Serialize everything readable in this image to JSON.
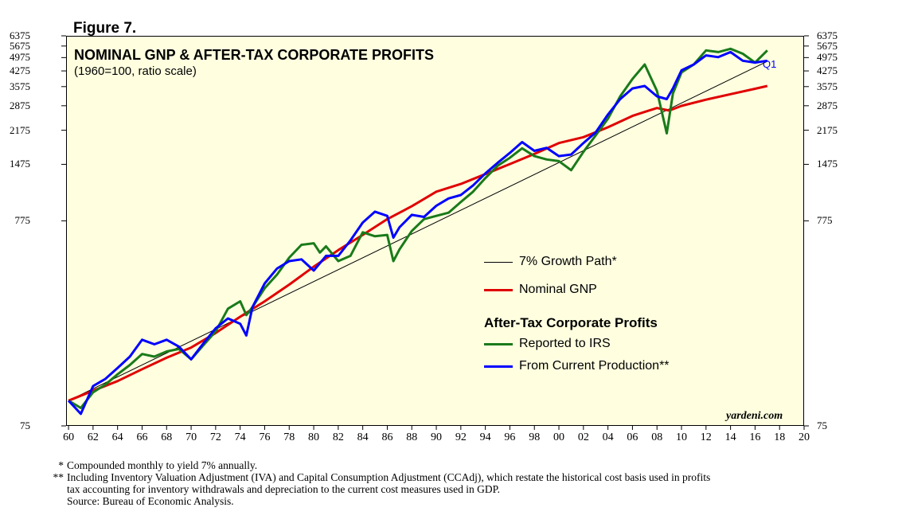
{
  "figure_label": "Figure 7.",
  "chart_data": {
    "type": "line",
    "title": "NOMINAL GNP & AFTER-TAX CORPORATE PROFITS",
    "subtitle": "(1960=100, ratio scale)",
    "scale": "log",
    "ylim": [
      75,
      6375
    ],
    "xlim": [
      1959.8,
      2020
    ],
    "y_ticks": [
      "6375",
      "5675",
      "4975",
      "4275",
      "3575",
      "2875",
      "2175",
      "1475",
      "775",
      "75"
    ],
    "x_ticks": [
      "60",
      "62",
      "64",
      "66",
      "68",
      "70",
      "72",
      "74",
      "76",
      "78",
      "80",
      "82",
      "84",
      "86",
      "88",
      "90",
      "92",
      "94",
      "96",
      "98",
      "00",
      "02",
      "04",
      "06",
      "08",
      "10",
      "12",
      "14",
      "16",
      "18",
      "20"
    ],
    "legend_header": "After-Tax Corporate Profits",
    "credit": "yardeni.com",
    "latest_label": "Q1",
    "series": [
      {
        "name": "7% Growth Path*",
        "color": "#000000",
        "width": 1,
        "points": [
          [
            1960,
            100
          ],
          [
            2017,
            4764
          ]
        ]
      },
      {
        "name": "Nominal GNP",
        "color": "#e00000",
        "width": 3,
        "points": [
          [
            1960,
            100
          ],
          [
            1962,
            112
          ],
          [
            1964,
            125
          ],
          [
            1966,
            143
          ],
          [
            1968,
            163
          ],
          [
            1970,
            183
          ],
          [
            1972,
            216
          ],
          [
            1974,
            260
          ],
          [
            1976,
            310
          ],
          [
            1978,
            375
          ],
          [
            1980,
            460
          ],
          [
            1982,
            555
          ],
          [
            1984,
            660
          ],
          [
            1986,
            790
          ],
          [
            1988,
            915
          ],
          [
            1990,
            1080
          ],
          [
            1992,
            1180
          ],
          [
            1994,
            1320
          ],
          [
            1996,
            1480
          ],
          [
            1998,
            1660
          ],
          [
            2000,
            1880
          ],
          [
            2002,
            2010
          ],
          [
            2004,
            2250
          ],
          [
            2006,
            2560
          ],
          [
            2007,
            2680
          ],
          [
            2008,
            2800
          ],
          [
            2009,
            2720
          ],
          [
            2010,
            2870
          ],
          [
            2012,
            3080
          ],
          [
            2014,
            3280
          ],
          [
            2016,
            3490
          ],
          [
            2017,
            3600
          ]
        ]
      },
      {
        "name": "Reported to IRS",
        "color": "#1a7a1a",
        "width": 3,
        "points": [
          [
            1960,
            100
          ],
          [
            1961,
            92
          ],
          [
            1962,
            110
          ],
          [
            1963,
            120
          ],
          [
            1964,
            135
          ],
          [
            1965,
            150
          ],
          [
            1966,
            170
          ],
          [
            1967,
            165
          ],
          [
            1968,
            175
          ],
          [
            1969,
            180
          ],
          [
            1970,
            160
          ],
          [
            1971,
            188
          ],
          [
            1972,
            220
          ],
          [
            1973,
            285
          ],
          [
            1974,
            310
          ],
          [
            1974.5,
            265
          ],
          [
            1975,
            290
          ],
          [
            1976,
            360
          ],
          [
            1977,
            420
          ],
          [
            1978,
            510
          ],
          [
            1979,
            590
          ],
          [
            1980,
            600
          ],
          [
            1980.5,
            540
          ],
          [
            1981,
            580
          ],
          [
            1982,
            490
          ],
          [
            1983,
            520
          ],
          [
            1984,
            680
          ],
          [
            1985,
            650
          ],
          [
            1986,
            660
          ],
          [
            1986.5,
            490
          ],
          [
            1987,
            560
          ],
          [
            1988,
            690
          ],
          [
            1989,
            790
          ],
          [
            1990,
            820
          ],
          [
            1991,
            850
          ],
          [
            1992,
            960
          ],
          [
            1993,
            1080
          ],
          [
            1994,
            1260
          ],
          [
            1995,
            1450
          ],
          [
            1996,
            1590
          ],
          [
            1997,
            1770
          ],
          [
            1998,
            1620
          ],
          [
            1999,
            1560
          ],
          [
            2000,
            1530
          ],
          [
            2001,
            1380
          ],
          [
            2002,
            1700
          ],
          [
            2003,
            2050
          ],
          [
            2004,
            2480
          ],
          [
            2005,
            3200
          ],
          [
            2006,
            3900
          ],
          [
            2007,
            4600
          ],
          [
            2008,
            3400
          ],
          [
            2008.8,
            2100
          ],
          [
            2009.3,
            3300
          ],
          [
            2010,
            4200
          ],
          [
            2011,
            4600
          ],
          [
            2012,
            5400
          ],
          [
            2013,
            5300
          ],
          [
            2014,
            5500
          ],
          [
            2015,
            5200
          ],
          [
            2016,
            4700
          ],
          [
            2017,
            5400
          ]
        ]
      },
      {
        "name": "From Current Production**",
        "color": "#0000ff",
        "width": 3,
        "points": [
          [
            1960,
            100
          ],
          [
            1961,
            86
          ],
          [
            1962,
            118
          ],
          [
            1963,
            128
          ],
          [
            1964,
            145
          ],
          [
            1965,
            165
          ],
          [
            1966,
            200
          ],
          [
            1967,
            190
          ],
          [
            1968,
            200
          ],
          [
            1969,
            185
          ],
          [
            1970,
            160
          ],
          [
            1971,
            192
          ],
          [
            1972,
            228
          ],
          [
            1973,
            255
          ],
          [
            1974,
            240
          ],
          [
            1974.5,
            210
          ],
          [
            1975,
            290
          ],
          [
            1976,
            380
          ],
          [
            1977,
            450
          ],
          [
            1978,
            490
          ],
          [
            1979,
            500
          ],
          [
            1980,
            440
          ],
          [
            1981,
            520
          ],
          [
            1982,
            520
          ],
          [
            1983,
            620
          ],
          [
            1984,
            760
          ],
          [
            1985,
            860
          ],
          [
            1986,
            820
          ],
          [
            1986.5,
            640
          ],
          [
            1987,
            720
          ],
          [
            1988,
            830
          ],
          [
            1989,
            810
          ],
          [
            1990,
            920
          ],
          [
            1991,
            1000
          ],
          [
            1992,
            1040
          ],
          [
            1993,
            1160
          ],
          [
            1994,
            1330
          ],
          [
            1995,
            1500
          ],
          [
            1996,
            1680
          ],
          [
            1997,
            1900
          ],
          [
            1998,
            1720
          ],
          [
            1999,
            1780
          ],
          [
            2000,
            1620
          ],
          [
            2001,
            1650
          ],
          [
            2002,
            1880
          ],
          [
            2003,
            2120
          ],
          [
            2004,
            2600
          ],
          [
            2005,
            3100
          ],
          [
            2006,
            3500
          ],
          [
            2007,
            3600
          ],
          [
            2008,
            3200
          ],
          [
            2008.8,
            3100
          ],
          [
            2009.3,
            3500
          ],
          [
            2010,
            4300
          ],
          [
            2011,
            4600
          ],
          [
            2012,
            5100
          ],
          [
            2013,
            5000
          ],
          [
            2014,
            5300
          ],
          [
            2015,
            4800
          ],
          [
            2016,
            4700
          ],
          [
            2017,
            4800
          ]
        ]
      }
    ]
  },
  "footnotes": [
    {
      "mark": "*",
      "text": "Compounded monthly to yield 7% annually."
    },
    {
      "mark": "**",
      "text": "Including Inventory Valuation Adjustment (IVA) and Capital Consumption Adjustment (CCAdj), which restate the historical cost basis used in profits"
    },
    {
      "mark": "",
      "text": "tax accounting for inventory withdrawals and depreciation to the current cost measures used in GDP."
    },
    {
      "mark": "",
      "text": "Source: Bureau of Economic Analysis."
    }
  ]
}
